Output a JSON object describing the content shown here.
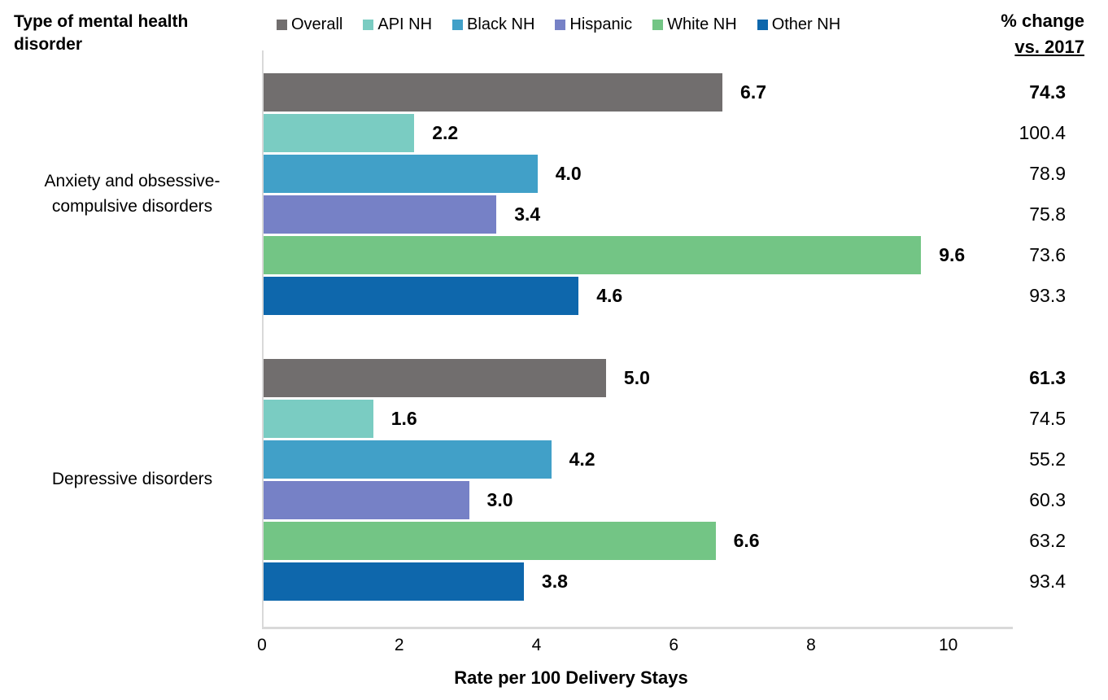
{
  "header": {
    "row_label_title": "Type of mental health disorder",
    "pct_change_title_line1": "% change",
    "pct_change_title_line2": "vs. 2017"
  },
  "legend": [
    {
      "label": "Overall",
      "color": "#716E6E"
    },
    {
      "label": "API NH",
      "color": "#7ACCC2"
    },
    {
      "label": "Black NH",
      "color": "#41A0C8"
    },
    {
      "label": "Hispanic",
      "color": "#7681C6"
    },
    {
      "label": "White NH",
      "color": "#73C585"
    },
    {
      "label": "Other NH",
      "color": "#0E67AC"
    }
  ],
  "chart_data": {
    "type": "bar",
    "orientation": "horizontal",
    "title": "",
    "xlabel": "Rate per 100 Delivery Stays",
    "x_ticks": [
      0,
      2,
      4,
      6,
      8,
      10
    ],
    "x_axis_max": 10.94,
    "grid": false,
    "legend_position": "top",
    "series_order": [
      "Overall",
      "API NH",
      "Black NH",
      "Hispanic",
      "White NH",
      "Other NH"
    ],
    "groups": [
      {
        "category": "Anxiety and obsessive-compulsive disorders",
        "bars": [
          {
            "series": "Overall",
            "value": 6.7,
            "pct_change": 74.3,
            "emphasis": true
          },
          {
            "series": "API NH",
            "value": 2.2,
            "pct_change": 100.4,
            "emphasis": false
          },
          {
            "series": "Black NH",
            "value": 4.0,
            "pct_change": 78.9,
            "emphasis": false
          },
          {
            "series": "Hispanic",
            "value": 3.4,
            "pct_change": 75.8,
            "emphasis": false
          },
          {
            "series": "White NH",
            "value": 9.6,
            "pct_change": 73.6,
            "emphasis": false
          },
          {
            "series": "Other NH",
            "value": 4.6,
            "pct_change": 93.3,
            "emphasis": false
          }
        ]
      },
      {
        "category": "Depressive disorders",
        "bars": [
          {
            "series": "Overall",
            "value": 5.0,
            "pct_change": 61.3,
            "emphasis": true
          },
          {
            "series": "API NH",
            "value": 1.6,
            "pct_change": 74.5,
            "emphasis": false
          },
          {
            "series": "Black NH",
            "value": 4.2,
            "pct_change": 55.2,
            "emphasis": false
          },
          {
            "series": "Hispanic",
            "value": 3.0,
            "pct_change": 60.3,
            "emphasis": false
          },
          {
            "series": "White NH",
            "value": 6.6,
            "pct_change": 63.2,
            "emphasis": false
          },
          {
            "series": "Other NH",
            "value": 3.8,
            "pct_change": 93.4,
            "emphasis": false
          }
        ]
      }
    ]
  }
}
